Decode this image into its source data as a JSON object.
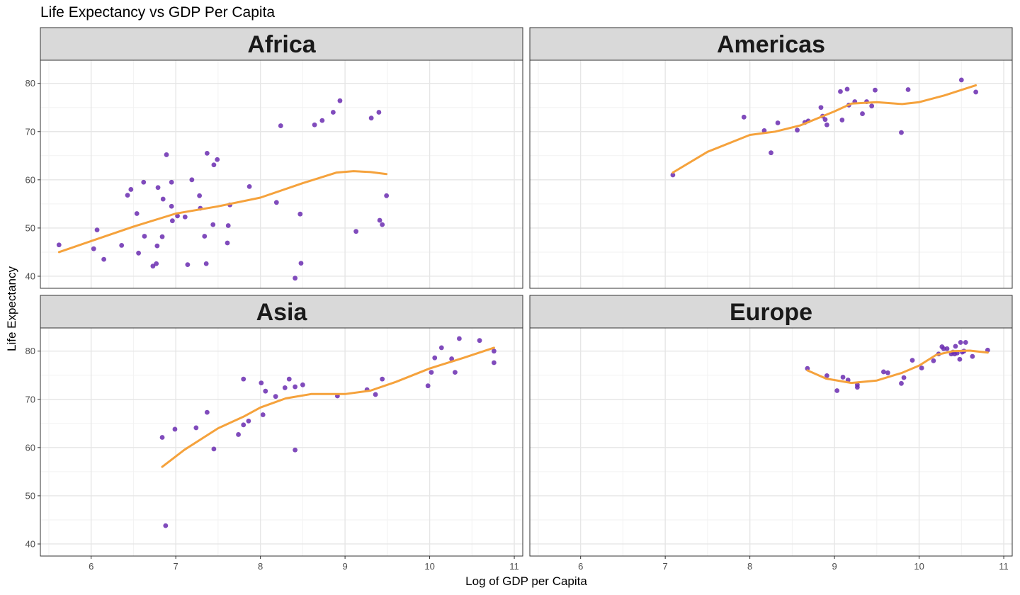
{
  "chart_data": {
    "type": "scatter",
    "title": "Life Expectancy vs GDP Per Capita",
    "xlabel": "Log of GDP per Capita",
    "ylabel": "Life Expectancy",
    "xlim": [
      5.4,
      11.1
    ],
    "ylim": [
      37.5,
      84.8
    ],
    "x_ticks": [
      6,
      7,
      8,
      9,
      10,
      11
    ],
    "y_ticks": [
      40,
      50,
      60,
      70,
      80
    ],
    "grid": true,
    "point_color": "#6a2bb0",
    "smooth_color": "#f5a23c",
    "strip_fill": "#d9d9d9",
    "facets": [
      {
        "name": "Africa",
        "points": [
          [
            5.62,
            46.5
          ],
          [
            6.03,
            45.7
          ],
          [
            6.07,
            49.6
          ],
          [
            6.15,
            43.5
          ],
          [
            6.36,
            46.4
          ],
          [
            6.43,
            56.8
          ],
          [
            6.47,
            58.0
          ],
          [
            6.54,
            53.0
          ],
          [
            6.56,
            44.8
          ],
          [
            6.62,
            59.5
          ],
          [
            6.63,
            48.3
          ],
          [
            6.73,
            42.1
          ],
          [
            6.77,
            42.6
          ],
          [
            6.78,
            46.3
          ],
          [
            6.79,
            58.4
          ],
          [
            6.84,
            48.2
          ],
          [
            6.85,
            56.0
          ],
          [
            6.89,
            65.2
          ],
          [
            6.95,
            54.5
          ],
          [
            6.95,
            59.5
          ],
          [
            6.96,
            51.5
          ],
          [
            7.02,
            52.5
          ],
          [
            7.11,
            52.3
          ],
          [
            7.14,
            42.4
          ],
          [
            7.19,
            60.0
          ],
          [
            7.28,
            56.7
          ],
          [
            7.29,
            54.1
          ],
          [
            7.34,
            48.3
          ],
          [
            7.36,
            42.6
          ],
          [
            7.37,
            65.5
          ],
          [
            7.44,
            50.7
          ],
          [
            7.45,
            63.1
          ],
          [
            7.49,
            64.2
          ],
          [
            7.61,
            46.9
          ],
          [
            7.62,
            50.5
          ],
          [
            7.64,
            54.8
          ],
          [
            7.87,
            58.6
          ],
          [
            8.19,
            55.3
          ],
          [
            8.24,
            71.2
          ],
          [
            8.41,
            39.6
          ],
          [
            8.47,
            52.9
          ],
          [
            8.48,
            42.7
          ],
          [
            8.64,
            71.4
          ],
          [
            8.73,
            72.3
          ],
          [
            8.86,
            74.0
          ],
          [
            8.94,
            76.4
          ],
          [
            9.13,
            49.3
          ],
          [
            9.31,
            72.8
          ],
          [
            9.4,
            74.0
          ],
          [
            9.41,
            51.6
          ],
          [
            9.44,
            50.7
          ],
          [
            9.49,
            56.7
          ]
        ],
        "smooth": [
          [
            5.62,
            45.0
          ],
          [
            6.0,
            47.3
          ],
          [
            6.5,
            50.3
          ],
          [
            7.0,
            53.0
          ],
          [
            7.5,
            54.5
          ],
          [
            8.0,
            56.3
          ],
          [
            8.5,
            59.3
          ],
          [
            8.9,
            61.5
          ],
          [
            9.1,
            61.8
          ],
          [
            9.3,
            61.6
          ],
          [
            9.49,
            61.2
          ]
        ]
      },
      {
        "name": "Americas",
        "points": [
          [
            7.09,
            61.0
          ],
          [
            7.93,
            73.0
          ],
          [
            8.17,
            70.2
          ],
          [
            8.25,
            65.6
          ],
          [
            8.33,
            71.8
          ],
          [
            8.56,
            70.3
          ],
          [
            8.65,
            71.9
          ],
          [
            8.69,
            72.2
          ],
          [
            8.84,
            75.0
          ],
          [
            8.86,
            73.2
          ],
          [
            8.89,
            72.5
          ],
          [
            8.91,
            71.4
          ],
          [
            9.07,
            78.3
          ],
          [
            9.09,
            72.4
          ],
          [
            9.15,
            78.8
          ],
          [
            9.17,
            75.5
          ],
          [
            9.24,
            76.2
          ],
          [
            9.33,
            73.7
          ],
          [
            9.38,
            76.2
          ],
          [
            9.44,
            75.3
          ],
          [
            9.48,
            78.6
          ],
          [
            9.79,
            69.8
          ],
          [
            9.87,
            78.7
          ],
          [
            10.5,
            80.7
          ],
          [
            10.67,
            78.2
          ]
        ],
        "smooth": [
          [
            7.09,
            61.5
          ],
          [
            7.5,
            65.8
          ],
          [
            8.0,
            69.3
          ],
          [
            8.3,
            70.0
          ],
          [
            8.6,
            71.3
          ],
          [
            9.0,
            74.2
          ],
          [
            9.2,
            75.8
          ],
          [
            9.5,
            76.1
          ],
          [
            9.8,
            75.7
          ],
          [
            10.0,
            76.1
          ],
          [
            10.3,
            77.5
          ],
          [
            10.67,
            79.6
          ]
        ]
      },
      {
        "name": "Asia",
        "points": [
          [
            6.84,
            62.1
          ],
          [
            6.88,
            43.8
          ],
          [
            6.99,
            63.8
          ],
          [
            7.24,
            64.1
          ],
          [
            7.37,
            67.3
          ],
          [
            7.45,
            59.7
          ],
          [
            7.74,
            62.7
          ],
          [
            7.8,
            74.2
          ],
          [
            7.8,
            64.7
          ],
          [
            7.86,
            65.5
          ],
          [
            8.01,
            73.4
          ],
          [
            8.03,
            66.8
          ],
          [
            8.06,
            71.7
          ],
          [
            8.18,
            70.6
          ],
          [
            8.29,
            72.4
          ],
          [
            8.34,
            74.2
          ],
          [
            8.41,
            59.5
          ],
          [
            8.41,
            72.6
          ],
          [
            8.5,
            73.0
          ],
          [
            8.91,
            70.7
          ],
          [
            9.26,
            72.0
          ],
          [
            9.36,
            71.0
          ],
          [
            9.44,
            74.2
          ],
          [
            9.98,
            72.8
          ],
          [
            10.02,
            75.6
          ],
          [
            10.06,
            78.6
          ],
          [
            10.14,
            80.7
          ],
          [
            10.26,
            78.4
          ],
          [
            10.3,
            75.6
          ],
          [
            10.35,
            82.6
          ],
          [
            10.59,
            82.2
          ],
          [
            10.76,
            80.0
          ],
          [
            10.76,
            77.6
          ]
        ],
        "smooth": [
          [
            6.84,
            56.0
          ],
          [
            7.1,
            59.5
          ],
          [
            7.5,
            64.0
          ],
          [
            7.8,
            66.4
          ],
          [
            8.0,
            68.3
          ],
          [
            8.3,
            70.2
          ],
          [
            8.6,
            71.1
          ],
          [
            9.0,
            71.1
          ],
          [
            9.3,
            71.8
          ],
          [
            9.6,
            73.6
          ],
          [
            10.0,
            76.4
          ],
          [
            10.4,
            78.6
          ],
          [
            10.76,
            80.7
          ]
        ]
      },
      {
        "name": "Europe",
        "points": [
          [
            8.68,
            76.4
          ],
          [
            8.91,
            74.9
          ],
          [
            9.03,
            71.8
          ],
          [
            9.1,
            74.6
          ],
          [
            9.16,
            74.0
          ],
          [
            9.27,
            73.0
          ],
          [
            9.27,
            72.5
          ],
          [
            9.58,
            75.7
          ],
          [
            9.63,
            75.5
          ],
          [
            9.79,
            73.3
          ],
          [
            9.82,
            74.5
          ],
          [
            9.92,
            78.1
          ],
          [
            10.03,
            76.5
          ],
          [
            10.17,
            78.0
          ],
          [
            10.23,
            79.4
          ],
          [
            10.27,
            80.9
          ],
          [
            10.29,
            80.5
          ],
          [
            10.33,
            80.5
          ],
          [
            10.38,
            79.4
          ],
          [
            10.4,
            79.8
          ],
          [
            10.42,
            79.4
          ],
          [
            10.43,
            81.0
          ],
          [
            10.45,
            79.6
          ],
          [
            10.48,
            78.3
          ],
          [
            10.49,
            81.8
          ],
          [
            10.51,
            79.8
          ],
          [
            10.53,
            80.0
          ],
          [
            10.55,
            81.8
          ],
          [
            10.63,
            78.9
          ],
          [
            10.81,
            80.2
          ]
        ],
        "smooth": [
          [
            8.68,
            76.0
          ],
          [
            8.9,
            74.3
          ],
          [
            9.2,
            73.4
          ],
          [
            9.5,
            73.9
          ],
          [
            9.8,
            75.5
          ],
          [
            10.0,
            77.0
          ],
          [
            10.2,
            79.2
          ],
          [
            10.4,
            80.0
          ],
          [
            10.6,
            80.1
          ],
          [
            10.81,
            79.7
          ]
        ]
      }
    ]
  }
}
